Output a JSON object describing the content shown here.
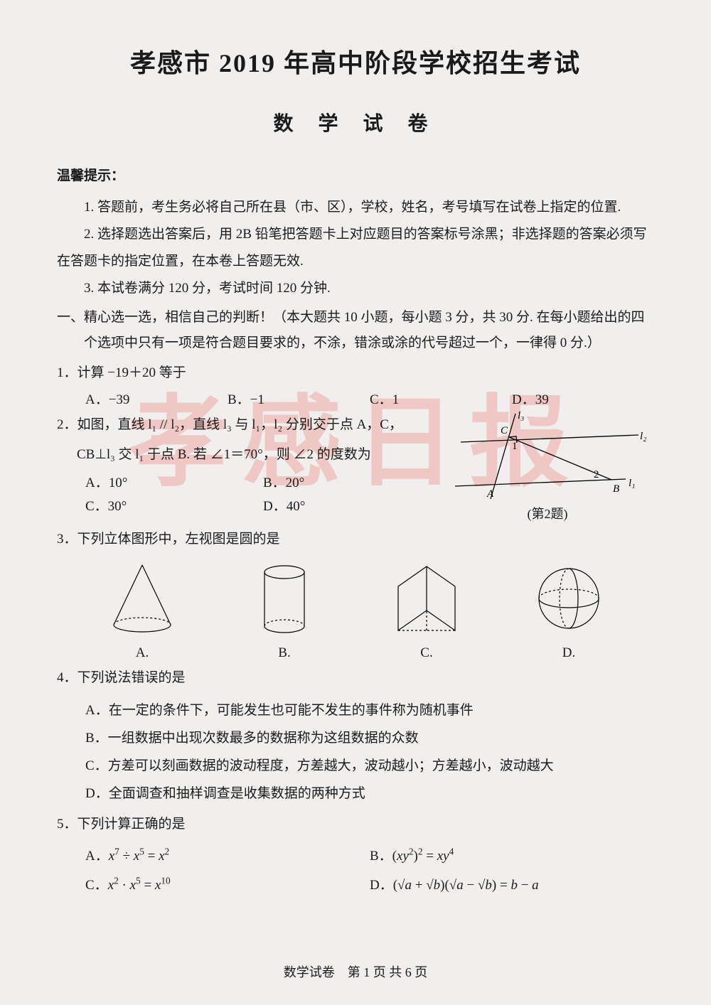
{
  "title_main": "孝感市 2019 年高中阶段学校招生考试",
  "title_sub": "数 学 试 卷",
  "hint_header": "温馨提示：",
  "hints": {
    "h1": "1. 答题前，考生务必将自己所在县（市、区），学校，姓名，考号填写在试卷上指定的位置.",
    "h2": "2. 选择题选出答案后，用 2B 铅笔把答题卡上对应题目的答案标号涂黑；非选择题的答案必须写在答题卡的指定位置，在本卷上答题无效.",
    "h3": "3. 本试卷满分 120 分，考试时间 120 分钟."
  },
  "section1": "一、精心选一选，相信自己的判断！（本大题共 10 小题，每小题 3 分，共 30 分. 在每小题给出的四个选项中只有一项是符合题目要求的，不涂，错涂或涂的代号超过一个，一律得 0 分.）",
  "q1": {
    "stem": "1．计算 −19＋20 等于",
    "A": "A．−39",
    "B": "B．−1",
    "C": "C．1",
    "D": "D．39"
  },
  "q2": {
    "line1": "2．如图，直线 l₁ // l₂，直线 l₃ 与 l₁，l₂ 分别交于点 A，C，",
    "line2": "CB⊥l₃ 交 l₁ 于点 B. 若 ∠1＝70°，则 ∠2 的度数为",
    "A": "A．10°",
    "B": "B．20°",
    "C": "C．30°",
    "D": "D．40°",
    "fig_caption": "(第2题)",
    "labels": {
      "l1": "l₁",
      "l2": "l₂",
      "l3": "l₃",
      "A": "A",
      "B": "B",
      "C": "C",
      "a1": "1",
      "a2": "2"
    },
    "fig_style": {
      "stroke": "#000",
      "stroke_width": 1.3
    }
  },
  "q3": {
    "stem": "3．下列立体图形中，左视图是圆的是",
    "labels": {
      "A": "A.",
      "B": "B.",
      "C": "C.",
      "D": "D."
    },
    "shape_stroke": "#000"
  },
  "q4": {
    "stem": "4．下列说法错误的是",
    "A": "A．在一定的条件下，可能发生也可能不发生的事件称为随机事件",
    "B": "B．一组数据中出现次数最多的数据称为这组数据的众数",
    "C": "C．方差可以刻画数据的波动程度，方差越大，波动越小；方差越小，波动越大",
    "D": "D．全面调查和抽样调查是收集数据的两种方式"
  },
  "q5": {
    "stem": "5．下列计算正确的是",
    "A_html": "A．<span class='ital'>x</span><sup>7</sup> ÷ <span class='ital'>x</span><sup>5</sup> = <span class='ital'>x</span><sup>2</sup>",
    "B_html": "B．(<span class='ital'>xy</span><sup>2</sup>)<sup>2</sup> = <span class='ital'>xy</span><sup>4</sup>",
    "C_html": "C．<span class='ital'>x</span><sup>2</sup> · <span class='ital'>x</span><sup>5</sup> = <span class='ital'>x</span><sup>10</sup>",
    "D_html": "D．(√<span class='ital'>a</span> + √<span class='ital'>b</span>)(√<span class='ital'>a</span> − √<span class='ital'>b</span>) = <span class='ital'>b</span> − <span class='ital'>a</span>"
  },
  "footer": "数学试卷　第 1 页 共 6 页",
  "watermark": "孝感日报"
}
